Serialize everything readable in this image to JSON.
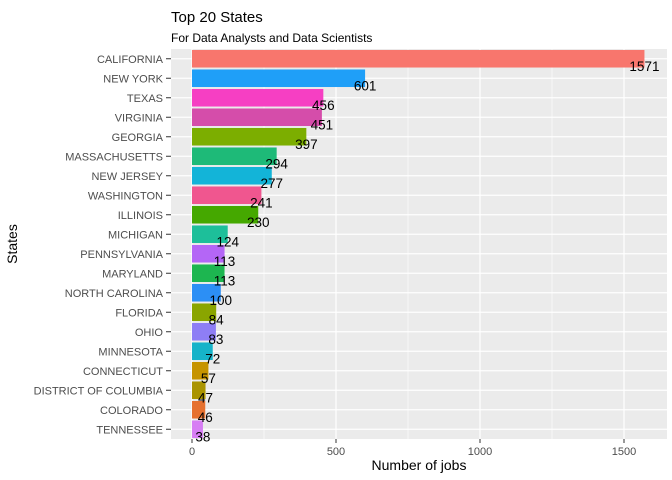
{
  "chart_data": {
    "type": "bar",
    "orientation": "horizontal",
    "title": "Top 20 States",
    "subtitle": "For Data Analysts and Data Scientists",
    "xlabel": "Number of jobs",
    "ylabel": "States",
    "xlim": [
      0,
      1650
    ],
    "x_ticks": [
      0,
      500,
      1000,
      1500
    ],
    "x_tick_labels": [
      "0",
      "500",
      "1000",
      "1500"
    ],
    "grid": true,
    "legend": "none",
    "categories": [
      "CALIFORNIA",
      "NEW YORK",
      "TEXAS",
      "VIRGINIA",
      "GEORGIA",
      "MASSACHUSETTS",
      "NEW JERSEY",
      "WASHINGTON",
      "ILLINOIS",
      "MICHIGAN",
      "PENNSYLVANIA",
      "MARYLAND",
      "NORTH CAROLINA",
      "FLORIDA",
      "OHIO",
      "MINNESOTA",
      "CONNECTICUT",
      "DISTRICT OF COLUMBIA",
      "COLORADO",
      "TENNESSEE"
    ],
    "values": [
      1571,
      601,
      456,
      451,
      397,
      294,
      277,
      241,
      230,
      124,
      113,
      113,
      100,
      84,
      83,
      72,
      57,
      47,
      46,
      38
    ],
    "value_labels": [
      "1571",
      "601",
      "456",
      "451",
      "397",
      "294",
      "277",
      "241",
      "230",
      "124",
      "113",
      "113",
      "100",
      "84",
      "83",
      "72",
      "57",
      "47",
      "46",
      "38"
    ],
    "colors": [
      "#F8766D",
      "#1F9FF8",
      "#F63FC3",
      "#D54DAA",
      "#7CAE00",
      "#1EBA78",
      "#13B4D8",
      "#F0568F",
      "#45A800",
      "#1DBF9A",
      "#B466F6",
      "#1DB650",
      "#2C8FF5",
      "#8AA500",
      "#8E7EF5",
      "#16B3C9",
      "#C69400",
      "#AA9400",
      "#E6712F",
      "#D77EF4"
    ],
    "panel_background": "#EBEBEB",
    "grid_color": "#FFFFFF"
  }
}
